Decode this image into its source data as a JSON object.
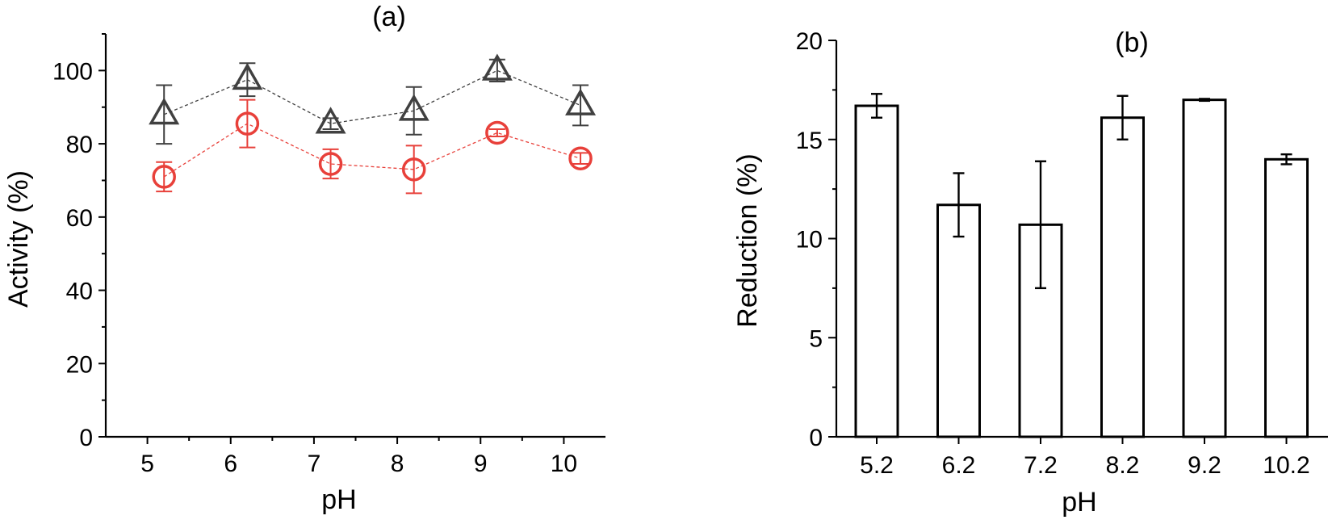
{
  "chart_data": [
    {
      "type": "scatter",
      "panel_label": "(a)",
      "xlabel": "pH",
      "ylabel": "Activity (%)",
      "xlim": [
        4.5,
        10.5
      ],
      "ylim": [
        0,
        110
      ],
      "xticks": [
        "5",
        "6",
        "7",
        "8",
        "9",
        "10"
      ],
      "yticks": [
        "0",
        "20",
        "40",
        "60",
        "80",
        "100"
      ],
      "grid": false,
      "series": [
        {
          "marker": "triangle",
          "color": "#404040",
          "line": "dashed",
          "x": [
            5.2,
            6.2,
            7.2,
            8.2,
            9.2,
            10.2
          ],
          "y": [
            88,
            97.5,
            85.5,
            89,
            100,
            90.5
          ],
          "err": [
            8,
            4.5,
            1.5,
            6.5,
            3,
            5.5
          ]
        },
        {
          "marker": "circle",
          "color": "#e8403a",
          "line": "dashed",
          "x": [
            5.2,
            6.2,
            7.2,
            8.2,
            9.2,
            10.2
          ],
          "y": [
            71,
            85.5,
            74.5,
            73,
            83,
            76
          ],
          "err": [
            4,
            6.5,
            4,
            6.5,
            1,
            1.5
          ]
        }
      ]
    },
    {
      "type": "bar",
      "panel_label": "(b)",
      "xlabel": "pH",
      "ylabel": "Reduction (%)",
      "categories": [
        "5.2",
        "6.2",
        "7.2",
        "8.2",
        "9.2",
        "10.2"
      ],
      "values": [
        16.7,
        11.7,
        10.7,
        16.1,
        17.0,
        14.0
      ],
      "err": [
        0.6,
        1.6,
        3.2,
        1.1,
        0.05,
        0.25
      ],
      "ylim": [
        0,
        20
      ],
      "yticks": [
        "0",
        "5",
        "10",
        "15",
        "20"
      ],
      "grid": false
    }
  ]
}
